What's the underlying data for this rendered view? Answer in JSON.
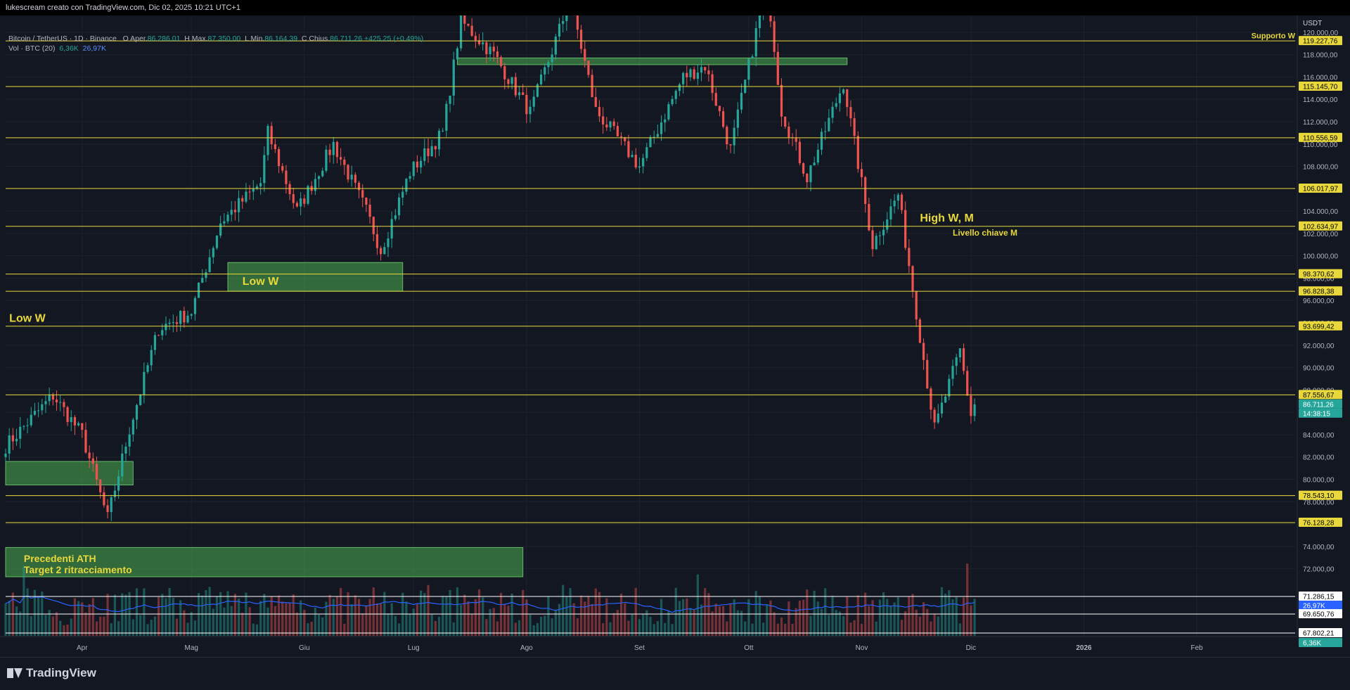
{
  "header": {
    "title": "lukescream creato con TradingView.com, Dic 02, 2025 10:21 UTC+1"
  },
  "legend": {
    "symbol": "Bitcoin / TetherUS · 1D · Binance",
    "open_label": "O",
    "open_text": "Aper.",
    "open": "86.286,01",
    "high_label": "H",
    "high_text": "Max.",
    "high": "87.350,00",
    "low_label": "L",
    "low_text": "Min.",
    "low": "86.164,39",
    "close_label": "C",
    "close_text": "Chius.",
    "close": "86.711,26",
    "change": "+425,25 (+0,49%)",
    "vol_label": "Vol · BTC (20)",
    "vol_value": "6,36K",
    "vol_ma": "26,97K"
  },
  "footer": {
    "brand": "TradingView"
  },
  "chart_data": {
    "type": "candlestick",
    "symbol": "BTC/USDT",
    "currency_label": "USDT",
    "ylim": [
      66000,
      121500
    ],
    "y_ticks": [
      120000,
      118000,
      116000,
      114000,
      112000,
      110000,
      108000,
      106000,
      104000,
      102000,
      100000,
      98000,
      96000,
      94000,
      92000,
      90000,
      88000,
      86000,
      84000,
      82000,
      80000,
      78000,
      76000,
      74000,
      72000
    ],
    "y_tick_labels": [
      "120.000,00",
      "118.000,00",
      "116.000,00",
      "114.000,00",
      "112.000,00",
      "110.000,00",
      "108.000,00",
      "106.000,00",
      "104.000,00",
      "102.000,00",
      "100.000,00",
      "98.000,00",
      "96.000,00",
      "94.000,00",
      "92.000,00",
      "90.000,00",
      "88.000,00",
      "86.000,00",
      "84.000,00",
      "82.000,00",
      "80.000,00",
      "78.000,00",
      "76.000,00",
      "74.000,00",
      "72.000,00"
    ],
    "x_start": "2025-03-11",
    "x_end": "2026-02-28",
    "x_labels": [
      {
        "date": "2025-04-01",
        "label": "Apr"
      },
      {
        "date": "2025-05-01",
        "label": "Mag"
      },
      {
        "date": "2025-06-01",
        "label": "Giu"
      },
      {
        "date": "2025-07-01",
        "label": "Lug"
      },
      {
        "date": "2025-08-01",
        "label": "Ago"
      },
      {
        "date": "2025-09-01",
        "label": "Set"
      },
      {
        "date": "2025-10-01",
        "label": "Ott"
      },
      {
        "date": "2025-11-01",
        "label": "Nov"
      },
      {
        "date": "2025-12-01",
        "label": "Dic"
      },
      {
        "date": "2026-01-01",
        "label": "2026"
      },
      {
        "date": "2026-02-01",
        "label": "Feb"
      }
    ],
    "price_path": [
      [
        "2025-03-11",
        83000
      ],
      [
        "2025-03-24",
        87500
      ],
      [
        "2025-04-01",
        84000
      ],
      [
        "2025-04-08",
        76500
      ],
      [
        "2025-04-14",
        84500
      ],
      [
        "2025-04-22",
        93500
      ],
      [
        "2025-05-01",
        95000
      ],
      [
        "2025-05-09",
        103000
      ],
      [
        "2025-05-20",
        106500
      ],
      [
        "2025-05-22",
        111000
      ],
      [
        "2025-05-30",
        104000
      ],
      [
        "2025-06-09",
        110000
      ],
      [
        "2025-06-18",
        104000
      ],
      [
        "2025-06-22",
        100500
      ],
      [
        "2025-06-30",
        107500
      ],
      [
        "2025-07-09",
        111000
      ],
      [
        "2025-07-14",
        121000
      ],
      [
        "2025-07-23",
        118000
      ],
      [
        "2025-08-02",
        112800
      ],
      [
        "2025-08-13",
        123000
      ],
      [
        "2025-08-20",
        113000
      ],
      [
        "2025-09-01",
        108000
      ],
      [
        "2025-09-13",
        116000
      ],
      [
        "2025-09-19",
        117000
      ],
      [
        "2025-09-26",
        109500
      ],
      [
        "2025-10-06",
        124500
      ],
      [
        "2025-10-10",
        113000
      ],
      [
        "2025-10-17",
        107000
      ],
      [
        "2025-10-27",
        115500
      ],
      [
        "2025-11-04",
        101000
      ],
      [
        "2025-11-11",
        105500
      ],
      [
        "2025-11-16",
        95000
      ],
      [
        "2025-11-21",
        84500
      ],
      [
        "2025-11-28",
        91500
      ],
      [
        "2025-12-01",
        85800
      ],
      [
        "2025-12-02",
        86711
      ]
    ],
    "horizontal_levels": [
      {
        "price": 119227.76,
        "label": "119.227,76"
      },
      {
        "price": 115145.7,
        "label": "115.145,70"
      },
      {
        "price": 110556.59,
        "label": "110.556,59"
      },
      {
        "price": 106017.97,
        "label": "106.017,97"
      },
      {
        "price": 102634.97,
        "label": "102.634,97"
      },
      {
        "price": 98370.62,
        "label": "98.370,62"
      },
      {
        "price": 96828.38,
        "label": "96.828,38"
      },
      {
        "price": 93699.42,
        "label": "93.699,42"
      },
      {
        "price": 87556.67,
        "label": "87.556,67"
      },
      {
        "price": 78543.1,
        "label": "78.543,10"
      },
      {
        "price": 76128.28,
        "label": "76.128,28"
      }
    ],
    "current_price": {
      "price": 86711.26,
      "label": "86.711,26",
      "countdown": "14:38:15"
    },
    "volume_levels": [
      {
        "label": "71.286,15",
        "color": "#ffffff"
      },
      {
        "label": "26,97K",
        "color": "#2962ff"
      },
      {
        "label": "69.650,76",
        "color": "#ffffff"
      },
      {
        "label": "67.802,21",
        "color": "#ffffff"
      },
      {
        "label": "6,36K",
        "color": "#26a69a"
      }
    ],
    "zones": [
      {
        "from": "2025-07-13",
        "to": "2025-10-28",
        "low": 117100,
        "high": 117700
      },
      {
        "from": "2025-05-11",
        "to": "2025-06-28",
        "low": 96828,
        "high": 99400
      },
      {
        "from": "2025-03-11",
        "to": "2025-04-15",
        "low": 79500,
        "high": 81600
      },
      {
        "from": "2025-03-11",
        "to": "2025-07-31",
        "low": 71286,
        "high": 73900
      }
    ],
    "annotations": [
      {
        "text": "Supporto W",
        "date": "2026-02-28",
        "price": 119450,
        "size": 11
      },
      {
        "text": "High W, M",
        "date": "2025-11-17",
        "price": 103050,
        "size": 16
      },
      {
        "text": "Livello chiave M",
        "date": "2025-11-26",
        "price": 101800,
        "size": 12
      },
      {
        "text": "Low W",
        "date": "2025-05-15",
        "price": 97400,
        "size": 16
      },
      {
        "text": "Low W",
        "date": "2025-03-12",
        "price": 94100,
        "size": 16
      },
      {
        "text": "Precedenti ATH",
        "date": "2025-03-16",
        "price": 72600,
        "size": 14
      },
      {
        "text": "Target 2 ritracciamento",
        "date": "2025-03-16",
        "price": 71600,
        "size": 14
      }
    ],
    "colors": {
      "up": "#26a69a",
      "down": "#ef5350",
      "level": "#e8d83c",
      "zone": "#4caf50",
      "background": "#131722",
      "grid": "#1e222d",
      "volume_ma": "#2962ff"
    }
  }
}
